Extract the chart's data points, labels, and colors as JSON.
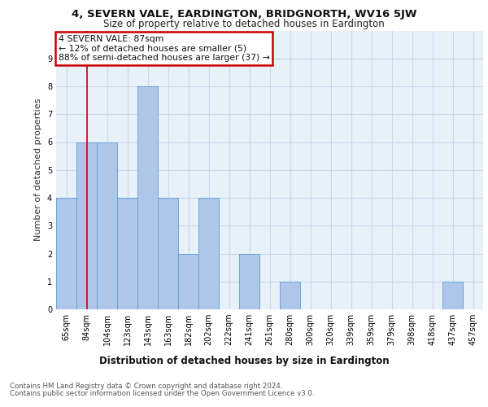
{
  "title": "4, SEVERN VALE, EARDINGTON, BRIDGNORTH, WV16 5JW",
  "subtitle": "Size of property relative to detached houses in Eardington",
  "xlabel": "Distribution of detached houses by size in Eardington",
  "ylabel": "Number of detached properties",
  "categories": [
    "65sqm",
    "84sqm",
    "104sqm",
    "123sqm",
    "143sqm",
    "163sqm",
    "182sqm",
    "202sqm",
    "222sqm",
    "241sqm",
    "261sqm",
    "280sqm",
    "300sqm",
    "320sqm",
    "339sqm",
    "359sqm",
    "379sqm",
    "398sqm",
    "418sqm",
    "437sqm",
    "457sqm"
  ],
  "values": [
    4,
    6,
    6,
    4,
    8,
    4,
    2,
    4,
    0,
    2,
    0,
    1,
    0,
    0,
    0,
    0,
    0,
    0,
    0,
    1,
    0
  ],
  "bar_color": "#aec6e8",
  "bar_edge_color": "#5a9fd4",
  "annotation_text_line1": "4 SEVERN VALE: 87sqm",
  "annotation_text_line2": "← 12% of detached houses are smaller (5)",
  "annotation_text_line3": "88% of semi-detached houses are larger (37) →",
  "annotation_box_color": "#ffffff",
  "annotation_box_edge_color": "#cc0000",
  "vline_color": "#cc0000",
  "vline_x": 1.0,
  "ylim": [
    0,
    10
  ],
  "yticks": [
    0,
    1,
    2,
    3,
    4,
    5,
    6,
    7,
    8,
    9
  ],
  "grid_color": "#c8d8e8",
  "background_color": "#e8f0f8",
  "footer_line1": "Contains HM Land Registry data © Crown copyright and database right 2024.",
  "footer_line2": "Contains public sector information licensed under the Open Government Licence v3.0."
}
